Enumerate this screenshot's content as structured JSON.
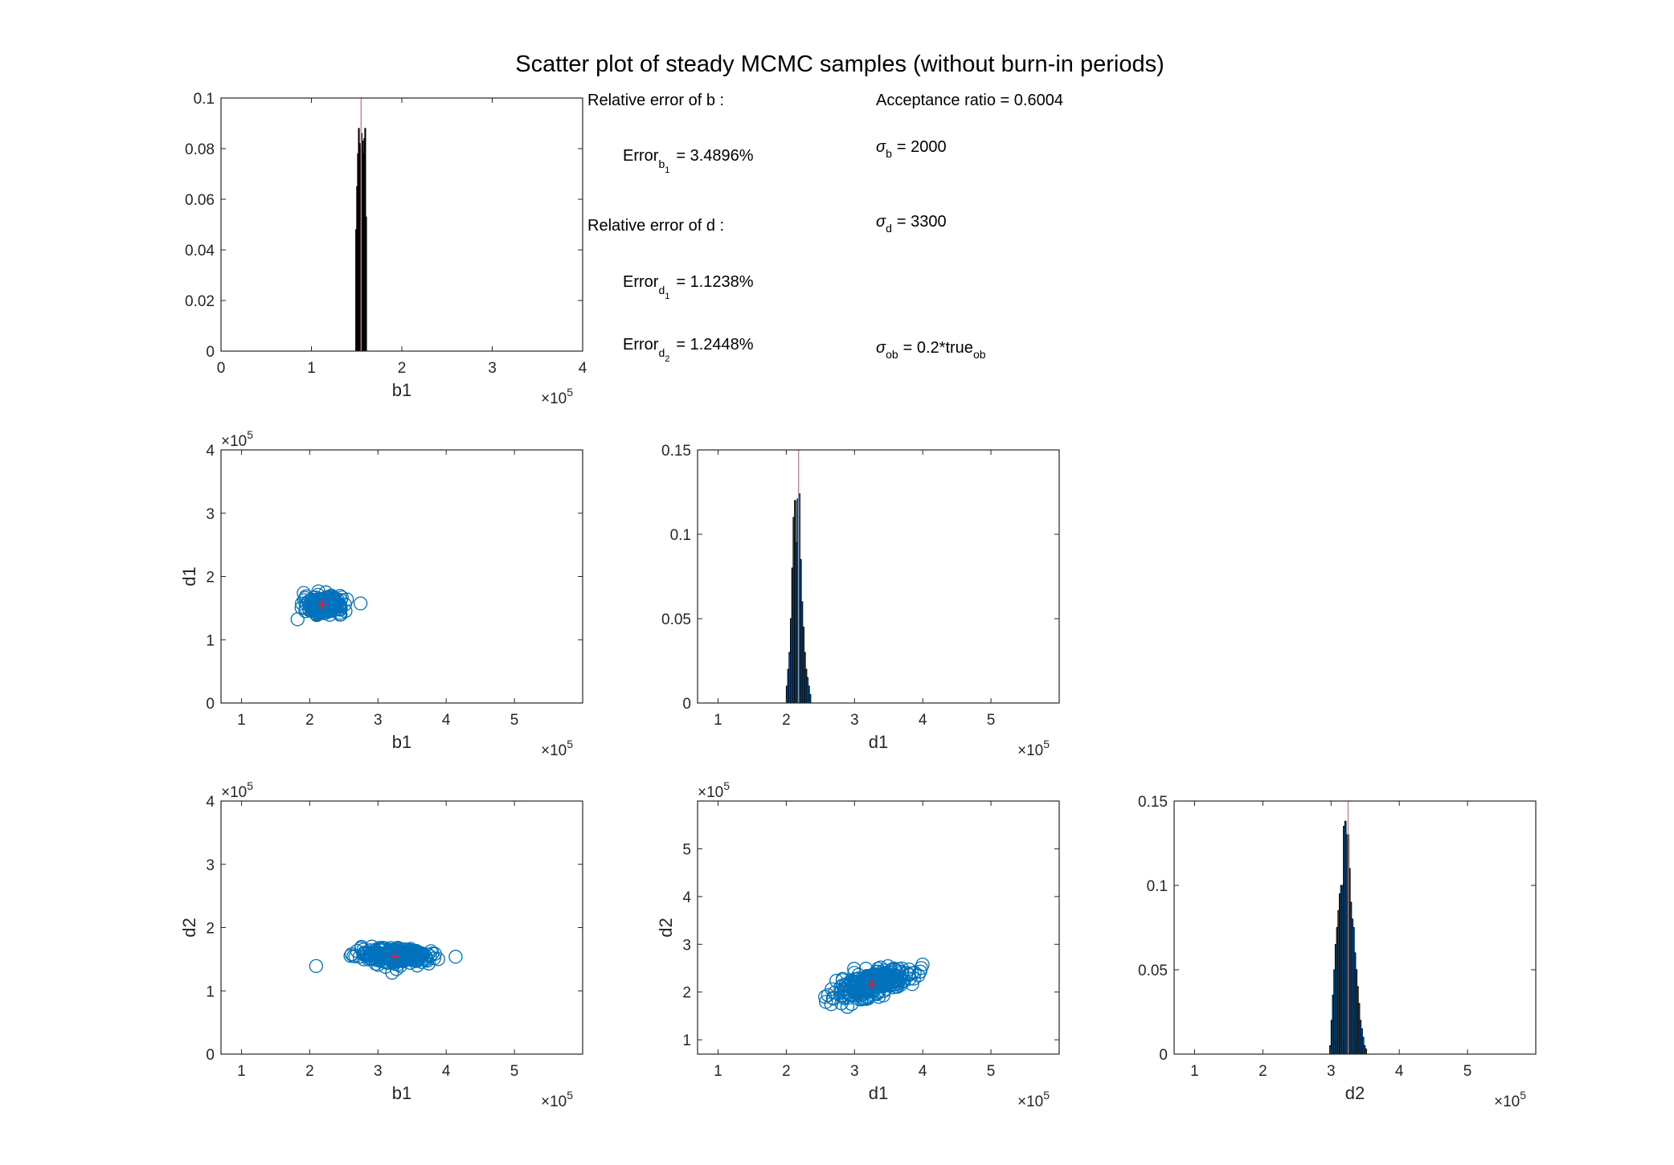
{
  "title": "Scatter plot of steady MCMC samples (without burn-in periods)",
  "annotations": {
    "rel_b_heading": "Relative error of b :",
    "rel_d_heading": "Relative error of d :",
    "acceptance": "Acceptance ratio = 0.6004",
    "error_b1": {
      "base": "Error",
      "sub": "b",
      "subsub": "1",
      "value": "= 3.4896%"
    },
    "error_d1": {
      "base": "Error",
      "sub": "d",
      "subsub": "1",
      "value": "= 1.1238%"
    },
    "error_d2": {
      "base": "Error",
      "sub": "d",
      "subsub": "2",
      "value": "= 1.2448%"
    },
    "sigma_b": {
      "base": "σ",
      "sub": "b",
      "value": "= 2000"
    },
    "sigma_d": {
      "base": "σ",
      "sub": "d",
      "value": "= 3300"
    },
    "sigma_ob": {
      "base": "σ",
      "sub": "ob",
      "value": "= 0.2*true",
      "tail_sub": "ob"
    }
  },
  "colors": {
    "scatter": "#0072BD",
    "truth_marker": "#E8202A",
    "truth_line": "#FF6B6B",
    "hist_bar_fill": "#0072BD",
    "hist_bar_edge": "#000000",
    "axes": "#262626"
  },
  "chart_data": [
    {
      "id": "hist-b1",
      "type": "bar",
      "subtype": "histogram",
      "xlabel": "b1",
      "x_exponent": "5",
      "xlim": [
        0,
        4
      ],
      "ylim": [
        0,
        0.1
      ],
      "xticks": [
        "0",
        "1",
        "2",
        "3",
        "4"
      ],
      "yticks": [
        "0",
        "0.02",
        "0.04",
        "0.06",
        "0.08",
        "0.1"
      ],
      "bar_edge": "black",
      "true_value": 1.55,
      "bins": [
        [
          1.49,
          0.048
        ],
        [
          1.5,
          0.065
        ],
        [
          1.51,
          0.078
        ],
        [
          1.52,
          0.088
        ],
        [
          1.53,
          0.082
        ],
        [
          1.54,
          0.08
        ],
        [
          1.55,
          0.086
        ],
        [
          1.56,
          0.083
        ],
        [
          1.57,
          0.078
        ],
        [
          1.58,
          0.084
        ],
        [
          1.59,
          0.088
        ],
        [
          1.6,
          0.053
        ]
      ]
    },
    {
      "id": "scatter-b1-d1",
      "type": "scatter",
      "xlabel": "b1",
      "ylabel": "d1",
      "x_exponent": "5",
      "y_exponent": "5",
      "xlim": [
        0.7,
        6
      ],
      "ylim": [
        0,
        4
      ],
      "xticks": [
        "1",
        "2",
        "3",
        "4",
        "5"
      ],
      "yticks": [
        "0",
        "1",
        "2",
        "3",
        "4"
      ],
      "cluster": {
        "cx": 2.2,
        "cy": 1.55,
        "sx": 0.28,
        "sy": 0.13
      },
      "truth": [
        2.18,
        1.55
      ]
    },
    {
      "id": "hist-d1",
      "type": "bar",
      "subtype": "histogram",
      "xlabel": "d1",
      "x_exponent": "5",
      "xlim": [
        0.7,
        6
      ],
      "ylim": [
        0,
        0.15
      ],
      "xticks": [
        "1",
        "2",
        "3",
        "4",
        "5"
      ],
      "yticks": [
        "0",
        "0.05",
        "0.1",
        "0.15"
      ],
      "true_value": 2.18,
      "bins": [
        [
          2.0,
          0.01
        ],
        [
          2.02,
          0.02
        ],
        [
          2.04,
          0.03
        ],
        [
          2.06,
          0.05
        ],
        [
          2.08,
          0.08
        ],
        [
          2.1,
          0.11
        ],
        [
          2.12,
          0.12
        ],
        [
          2.14,
          0.095
        ],
        [
          2.16,
          0.121
        ],
        [
          2.18,
          0.124
        ],
        [
          2.2,
          0.085
        ],
        [
          2.22,
          0.06
        ],
        [
          2.24,
          0.045
        ],
        [
          2.26,
          0.03
        ],
        [
          2.28,
          0.02
        ],
        [
          2.3,
          0.015
        ],
        [
          2.32,
          0.01
        ],
        [
          2.34,
          0.005
        ]
      ]
    },
    {
      "id": "scatter-b1-d2",
      "type": "scatter",
      "xlabel": "b1",
      "ylabel": "d2",
      "x_exponent": "5",
      "y_exponent": "5",
      "xlim": [
        0.7,
        6
      ],
      "ylim": [
        0,
        4
      ],
      "xticks": [
        "1",
        "2",
        "3",
        "4",
        "5"
      ],
      "yticks": [
        "0",
        "1",
        "2",
        "3",
        "4"
      ],
      "cluster": {
        "cx": 3.27,
        "cy": 1.55,
        "sx": 0.55,
        "sy": 0.13
      },
      "truth": [
        3.25,
        1.55
      ]
    },
    {
      "id": "scatter-d1-d2",
      "type": "scatter",
      "xlabel": "d1",
      "ylabel": "d2",
      "x_exponent": "5",
      "y_exponent": "5",
      "xlim": [
        0.7,
        6
      ],
      "ylim": [
        0.7,
        6
      ],
      "xticks": [
        "1",
        "2",
        "3",
        "4",
        "5"
      ],
      "yticks": [
        "1",
        "2",
        "3",
        "4",
        "5"
      ],
      "cluster": {
        "cx": 3.25,
        "cy": 2.18,
        "sx": 0.55,
        "sy": 0.28,
        "tilt": 0.35
      },
      "truth": [
        3.25,
        2.17
      ]
    },
    {
      "id": "hist-d2",
      "type": "bar",
      "subtype": "histogram",
      "xlabel": "d2",
      "x_exponent": "5",
      "xlim": [
        0.7,
        6
      ],
      "ylim": [
        0,
        0.15
      ],
      "xticks": [
        "1",
        "2",
        "3",
        "4",
        "5"
      ],
      "yticks": [
        "0",
        "0.05",
        "0.1",
        "0.15"
      ],
      "true_value": 3.25,
      "bins": [
        [
          2.98,
          0.005
        ],
        [
          3.0,
          0.02
        ],
        [
          3.02,
          0.035
        ],
        [
          3.04,
          0.05
        ],
        [
          3.06,
          0.065
        ],
        [
          3.08,
          0.075
        ],
        [
          3.1,
          0.085
        ],
        [
          3.12,
          0.095
        ],
        [
          3.14,
          0.1
        ],
        [
          3.16,
          0.1
        ],
        [
          3.18,
          0.135
        ],
        [
          3.2,
          0.138
        ],
        [
          3.22,
          0.13
        ],
        [
          3.24,
          0.13
        ],
        [
          3.26,
          0.11
        ],
        [
          3.28,
          0.09
        ],
        [
          3.3,
          0.08
        ],
        [
          3.32,
          0.075
        ],
        [
          3.34,
          0.06
        ],
        [
          3.36,
          0.05
        ],
        [
          3.38,
          0.04
        ],
        [
          3.4,
          0.03
        ],
        [
          3.42,
          0.02
        ],
        [
          3.44,
          0.015
        ],
        [
          3.46,
          0.01
        ],
        [
          3.48,
          0.005
        ],
        [
          3.5,
          0.003
        ]
      ]
    }
  ]
}
